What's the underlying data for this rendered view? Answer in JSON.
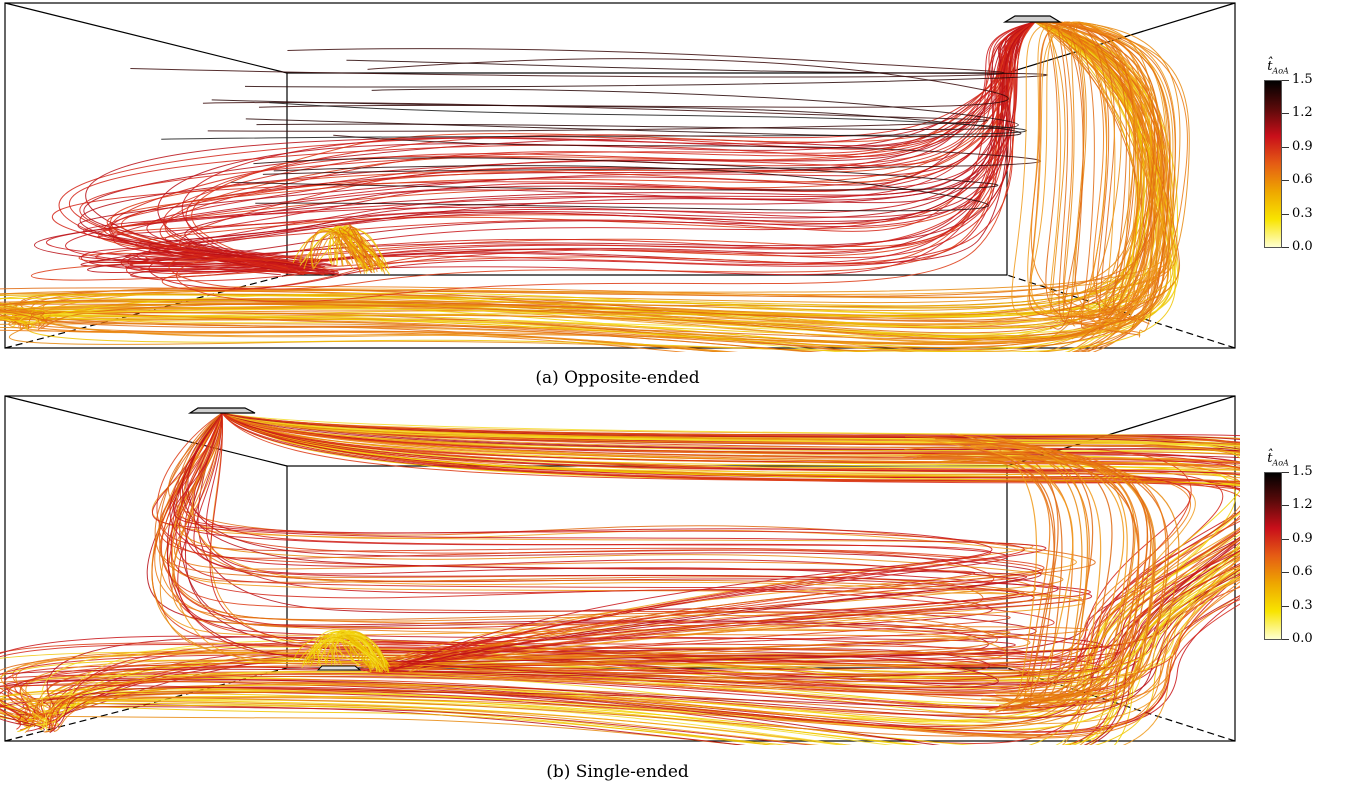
{
  "figure": {
    "panels": [
      {
        "id": "a",
        "caption": "(a) Opposite-ended",
        "colorbar": {
          "title": "t̂",
          "subscript": "AoA",
          "ticks": [
            "1.5",
            "1.2",
            "0.9",
            "0.6",
            "0.3",
            "0.0"
          ]
        }
      },
      {
        "id": "b",
        "caption": "(b) Single-ended",
        "colorbar": {
          "title": "t̂",
          "subscript": "AoA",
          "ticks": [
            "1.5",
            "1.2",
            "0.9",
            "0.6",
            "0.3",
            "0.0"
          ]
        }
      }
    ],
    "colormap": [
      "#ffffd0",
      "#f8e400",
      "#eea700",
      "#e55d14",
      "#c90f1a",
      "#5a0a0a",
      "#000000"
    ]
  }
}
